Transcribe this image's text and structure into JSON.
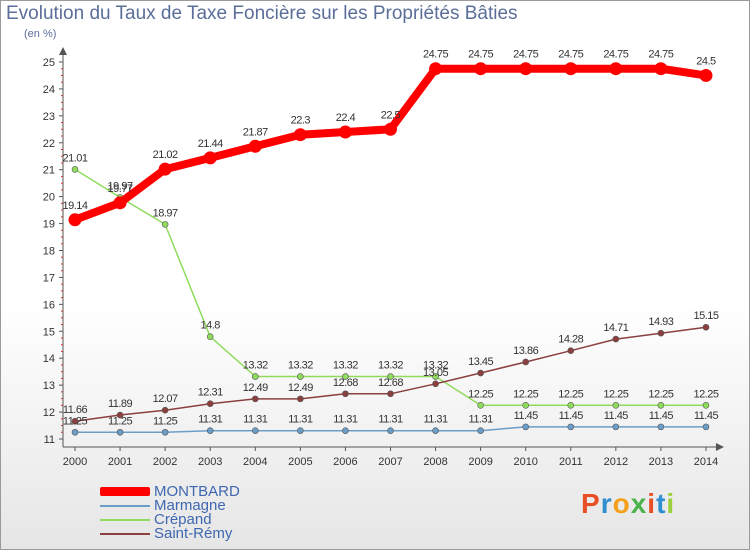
{
  "chart_data": {
    "type": "line",
    "title": "Evolution du Taux de Taxe Foncière sur les Propriétés Bâties",
    "ylabel": "(en %)",
    "xlabel": "",
    "categories": [
      "2000",
      "2001",
      "2002",
      "2003",
      "2004",
      "2005",
      "2006",
      "2007",
      "2008",
      "2009",
      "2010",
      "2011",
      "2012",
      "2013",
      "2014"
    ],
    "y_ticks": [
      "11",
      "12",
      "13",
      "14",
      "15",
      "16",
      "17",
      "18",
      "19",
      "20",
      "21",
      "22",
      "23",
      "24",
      "25"
    ],
    "ylim": [
      11,
      25
    ],
    "grid": false,
    "legend_position": "bottom-left",
    "series": [
      {
        "name": "MONTBARD",
        "color": "#ff0000",
        "values": [
          19.14,
          19.77,
          21.02,
          21.44,
          21.87,
          22.3,
          22.4,
          22.5,
          24.75,
          24.75,
          24.75,
          24.75,
          24.75,
          24.75,
          24.5
        ],
        "labels": [
          "19.14",
          "19.77",
          "21.02",
          "21.44",
          "21.87",
          "22.3",
          "22.4",
          "22.5",
          "24.75",
          "24.75",
          "24.75",
          "24.75",
          "24.75",
          "24.75",
          "24.5"
        ]
      },
      {
        "name": "Marmagne",
        "color": "#6a9ec9",
        "values": [
          11.25,
          11.25,
          11.25,
          11.31,
          11.31,
          11.31,
          11.31,
          11.31,
          11.31,
          11.31,
          11.45,
          11.45,
          11.45,
          11.45,
          11.45
        ],
        "labels": [
          "11.25",
          "11.25",
          "11.25",
          "11.31",
          "11.31",
          "11.31",
          "11.31",
          "11.31",
          "11.31",
          "11.31",
          "11.45",
          "11.45",
          "11.45",
          "11.45",
          "11.45"
        ]
      },
      {
        "name": "Crépand",
        "color": "#8fdc5c",
        "values": [
          21.01,
          19.97,
          18.97,
          14.8,
          13.32,
          13.32,
          13.32,
          13.32,
          13.32,
          12.25,
          12.25,
          12.25,
          12.25,
          12.25,
          12.25
        ],
        "labels": [
          "21.01",
          "19.97",
          "18.97",
          "14.8",
          "13.32",
          "13.32",
          "13.32",
          "13.32",
          "13.32",
          "12.25",
          "12.25",
          "12.25",
          "12.25",
          "12.25",
          "12.25"
        ]
      },
      {
        "name": "Saint-Rémy",
        "color": "#8b3f3f",
        "values": [
          11.66,
          11.89,
          12.07,
          12.31,
          12.49,
          12.49,
          12.68,
          12.68,
          13.05,
          13.45,
          13.86,
          14.28,
          14.71,
          14.93,
          15.15
        ],
        "labels": [
          "11.66",
          "11.89",
          "12.07",
          "12.31",
          "12.49",
          "12.49",
          "12.68",
          "12.68",
          "13.05",
          "13.45",
          "13.86",
          "14.28",
          "14.71",
          "14.93",
          "15.15"
        ]
      }
    ]
  },
  "brand": {
    "logo_letters": [
      "P",
      "r",
      "o",
      "x",
      "i",
      "t",
      "i"
    ],
    "logo_colors": [
      "#e94f24",
      "#2f8fd1",
      "#f5a01a",
      "#4bb34a",
      "#e94f24",
      "#2f8fd1",
      "#9ccf3c"
    ]
  }
}
